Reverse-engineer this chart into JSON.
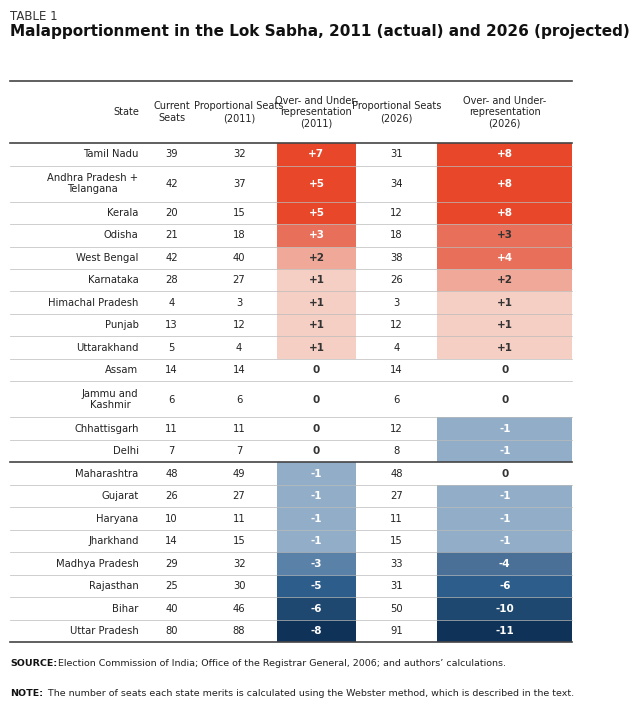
{
  "title_line1": "TABLE 1",
  "title_line2": "Malapportionment in the Lok Sabha, 2011 (actual) and 2026 (projected)",
  "rows": [
    [
      "Tamil Nadu",
      "39",
      "32",
      "+7",
      "31",
      "+8"
    ],
    [
      "Andhra Pradesh +\nTelangana",
      "42",
      "37",
      "+5",
      "34",
      "+8"
    ],
    [
      "Kerala",
      "20",
      "15",
      "+5",
      "12",
      "+8"
    ],
    [
      "Odisha",
      "21",
      "18",
      "+3",
      "18",
      "+3"
    ],
    [
      "West Bengal",
      "42",
      "40",
      "+2",
      "38",
      "+4"
    ],
    [
      "Karnataka",
      "28",
      "27",
      "+1",
      "26",
      "+2"
    ],
    [
      "Himachal Pradesh",
      "4",
      "3",
      "+1",
      "3",
      "+1"
    ],
    [
      "Punjab",
      "13",
      "12",
      "+1",
      "12",
      "+1"
    ],
    [
      "Uttarakhand",
      "5",
      "4",
      "+1",
      "4",
      "+1"
    ],
    [
      "Assam",
      "14",
      "14",
      "0",
      "14",
      "0"
    ],
    [
      "Jammu and\nKashmir",
      "6",
      "6",
      "0",
      "6",
      "0"
    ],
    [
      "Chhattisgarh",
      "11",
      "11",
      "0",
      "12",
      "-1"
    ],
    [
      "Delhi",
      "7",
      "7",
      "0",
      "8",
      "-1"
    ],
    [
      "Maharashtra",
      "48",
      "49",
      "-1",
      "48",
      "0"
    ],
    [
      "Gujarat",
      "26",
      "27",
      "-1",
      "27",
      "-1"
    ],
    [
      "Haryana",
      "10",
      "11",
      "-1",
      "11",
      "-1"
    ],
    [
      "Jharkhand",
      "14",
      "15",
      "-1",
      "15",
      "-1"
    ],
    [
      "Madhya Pradesh",
      "29",
      "32",
      "-3",
      "33",
      "-4"
    ],
    [
      "Rajasthan",
      "25",
      "30",
      "-5",
      "31",
      "-6"
    ],
    [
      "Bihar",
      "40",
      "46",
      "-6",
      "50",
      "-10"
    ],
    [
      "Uttar Pradesh",
      "80",
      "88",
      "-8",
      "91",
      "-11"
    ]
  ],
  "source_bold": "SOURCE:",
  "source_rest": " Election Commission of India; Office of the Registrar General, 2006; and authors’ calculations.",
  "note_bold": "NOTE:",
  "note_rest": " The number of seats each state merits is calculated using the Webster method, which is described in the text.",
  "cell_colors_2011": {
    "+7": "#e8472a",
    "+5": "#e8472a",
    "+3": "#e8705a",
    "+2": "#f0a898",
    "+1": "#f5cfc4",
    "0": "#ffffff",
    "-1": "#92adc8",
    "-3": "#5a82a8",
    "-5": "#2d5d8a",
    "-6": "#1e4870",
    "-8": "#0f3358"
  },
  "cell_colors_2026": {
    "+8": "#e8472a",
    "+4": "#e8705a",
    "+3": "#e8705a",
    "+2": "#f0a898",
    "+1": "#f5cfc4",
    "0": "#ffffff",
    "-1": "#92adc8",
    "-4": "#4a7098",
    "-6": "#2d5d8a",
    "-10": "#1e4870",
    "-11": "#0f3358"
  },
  "text_light": [
    "#ffffff"
  ],
  "text_dark": [
    "#333333"
  ],
  "light_cells_2011": [
    "+2",
    "+1",
    "0"
  ],
  "light_cells_2026": [
    "+3",
    "+2",
    "+1",
    "0"
  ]
}
